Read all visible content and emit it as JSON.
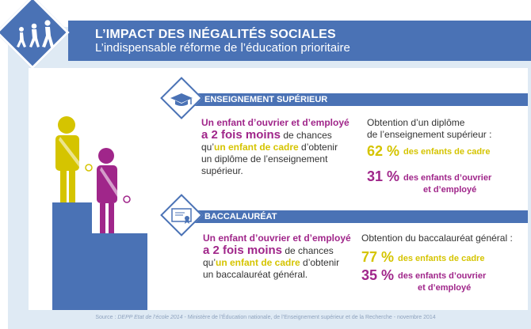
{
  "header": {
    "title": "L’IMPACT DES INÉGALITÉS SOCIALES",
    "subtitle": "L’indispensable réforme de l’éducation prioritaire"
  },
  "colors": {
    "blue": "#4a72b5",
    "magenta": "#a0268a",
    "yellow": "#d5c400",
    "panel": "#dfeaf4"
  },
  "icons": [
    "walking-children-icon",
    "graduation-cap-icon",
    "diploma-icon"
  ],
  "sections": [
    {
      "label": "ENSEIGNEMENT SUPÉRIEUR",
      "lead_1": "Un enfant d’ouvrier et d’employé",
      "lead_2": "a 2 fois moins",
      "lead_3": " de chances",
      "lead_4": "qu’",
      "lead_5": "un enfant de cadre",
      "lead_6": " d’obtenir",
      "lead_7": "un diplôme de l’enseignement",
      "lead_8": "supérieur.",
      "stat_title_1": "Obtention d’un diplôme",
      "stat_title_2": "de l’enseignement supérieur :",
      "stat1_num": "62 %",
      "stat1_label": "des enfants de cadre",
      "stat2_num": "31 %",
      "stat2_label_1": "des enfants d’ouvrier",
      "stat2_label_2": "et d’employé"
    },
    {
      "label": "BACCALAURÉAT",
      "lead_1": "Un enfant d’ouvrier et d’employé",
      "lead_2": "a 2 fois moins",
      "lead_3": " de chances",
      "lead_4": "qu’",
      "lead_5": "un enfant de cadre",
      "lead_6": " d’obtenir",
      "lead_7": "un baccalauréat général.",
      "stat_title_1": "Obtention du baccalauréat général :",
      "stat1_num": "77 %",
      "stat1_label": "des enfants de cadre",
      "stat2_num": "35 %",
      "stat2_label_1": "des enfants d’ouvrier",
      "stat2_label_2": "et d’employé"
    }
  ],
  "source": {
    "prefix": "Source : ",
    "italic": "DEPP Etat de l’école 2014",
    "rest": " - Ministère de l’Éducation nationale, de l’Enseignement supérieur et de la Recherche - novembre 2014"
  }
}
